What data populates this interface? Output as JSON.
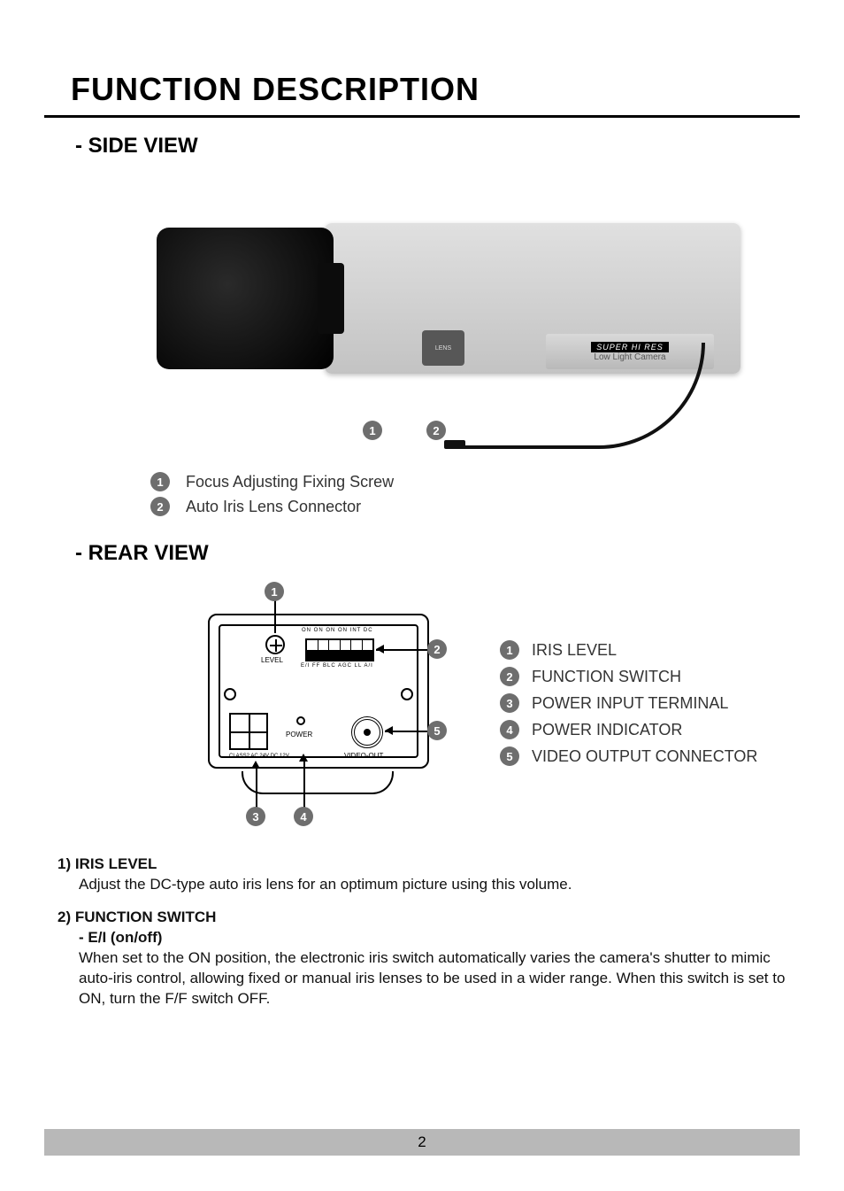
{
  "page": {
    "title": "FUNCTION DESCRIPTION",
    "number": "2",
    "colors": {
      "text": "#000000",
      "body_text": "#111111",
      "legend_text": "#333333",
      "badge_bg": "#6e6e6e",
      "badge_fg": "#ffffff",
      "footer_bg": "#b8b8b8",
      "rule": "#000000",
      "camera_body_top": "#e0e0e0",
      "camera_body_bottom": "#c3c3c3",
      "lens_dark": "#000000"
    },
    "typography": {
      "title_fontsize_pt": 27,
      "section_fontsize_pt": 18,
      "body_fontsize_pt": 13,
      "badge_fontsize_pt": 10,
      "diagram_label_fontsize_pt": 6
    }
  },
  "side_view": {
    "heading": "- SIDE VIEW",
    "camera_label_line1": "SUPER HI RES",
    "camera_label_line2": "Low Light Camera",
    "lens_port_text": "LENS",
    "callouts": [
      {
        "num": "1",
        "label": "Focus Adjusting Fixing Screw"
      },
      {
        "num": "2",
        "label": "Auto Iris Lens Connector"
      }
    ]
  },
  "rear_view": {
    "heading": "- REAR VIEW",
    "diagram_labels": {
      "level": "LEVEL",
      "dip_top": "ON ON ON ON INT DC",
      "dip_bot": "E/I  FF  BLC AGC  LL   A/I",
      "power": "POWER",
      "video_out": "VIDEO-OUT",
      "class": "CLASS2\nAC 24V\nDC 12V"
    },
    "dip_switch_count": 6,
    "callouts": [
      {
        "num": "1",
        "label": "IRIS LEVEL"
      },
      {
        "num": "2",
        "label": "FUNCTION SWITCH"
      },
      {
        "num": "3",
        "label": "POWER INPUT TERMINAL"
      },
      {
        "num": "4",
        "label": "POWER INDICATOR"
      },
      {
        "num": "5",
        "label": "VIDEO OUTPUT CONNECTOR"
      }
    ]
  },
  "descriptions": {
    "item1": {
      "heading": "1) IRIS LEVEL",
      "body": "Adjust the DC-type auto iris lens for an optimum picture using this volume."
    },
    "item2": {
      "heading": "2) FUNCTION SWITCH",
      "sub": "- E/I (on/off)",
      "body": "When set to the ON position, the electronic iris switch automatically varies the camera's shutter to mimic auto-iris control, allowing fixed or manual iris lenses to be used in a wider range. When this switch is set to ON, turn the F/F switch OFF."
    }
  }
}
